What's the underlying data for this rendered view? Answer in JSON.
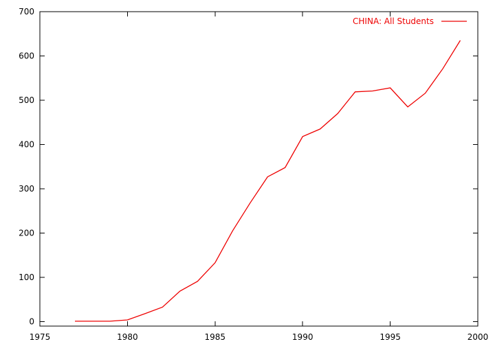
{
  "chart_data": {
    "type": "line",
    "title": "",
    "xlabel": "",
    "ylabel": "",
    "xlim": [
      1975,
      2000
    ],
    "ylim": [
      -10,
      700
    ],
    "x_ticks": [
      1975,
      1980,
      1985,
      1990,
      1995,
      2000
    ],
    "y_ticks": [
      0,
      100,
      200,
      300,
      400,
      500,
      600,
      700
    ],
    "grid": false,
    "legend": "top-right",
    "series": [
      {
        "name": "CHINA: All Students",
        "color": "#ee0000",
        "x": [
          1977,
          1978,
          1979,
          1980,
          1981,
          1982,
          1983,
          1984,
          1985,
          1986,
          1987,
          1988,
          1989,
          1990,
          1991,
          1992,
          1993,
          1994,
          1995,
          1996,
          1997,
          1998,
          1999
        ],
        "y": [
          1,
          1,
          1,
          4,
          18,
          33,
          69,
          91,
          133,
          205,
          268,
          327,
          348,
          418,
          435,
          470,
          519,
          521,
          528,
          485,
          516,
          571,
          635
        ]
      }
    ]
  }
}
